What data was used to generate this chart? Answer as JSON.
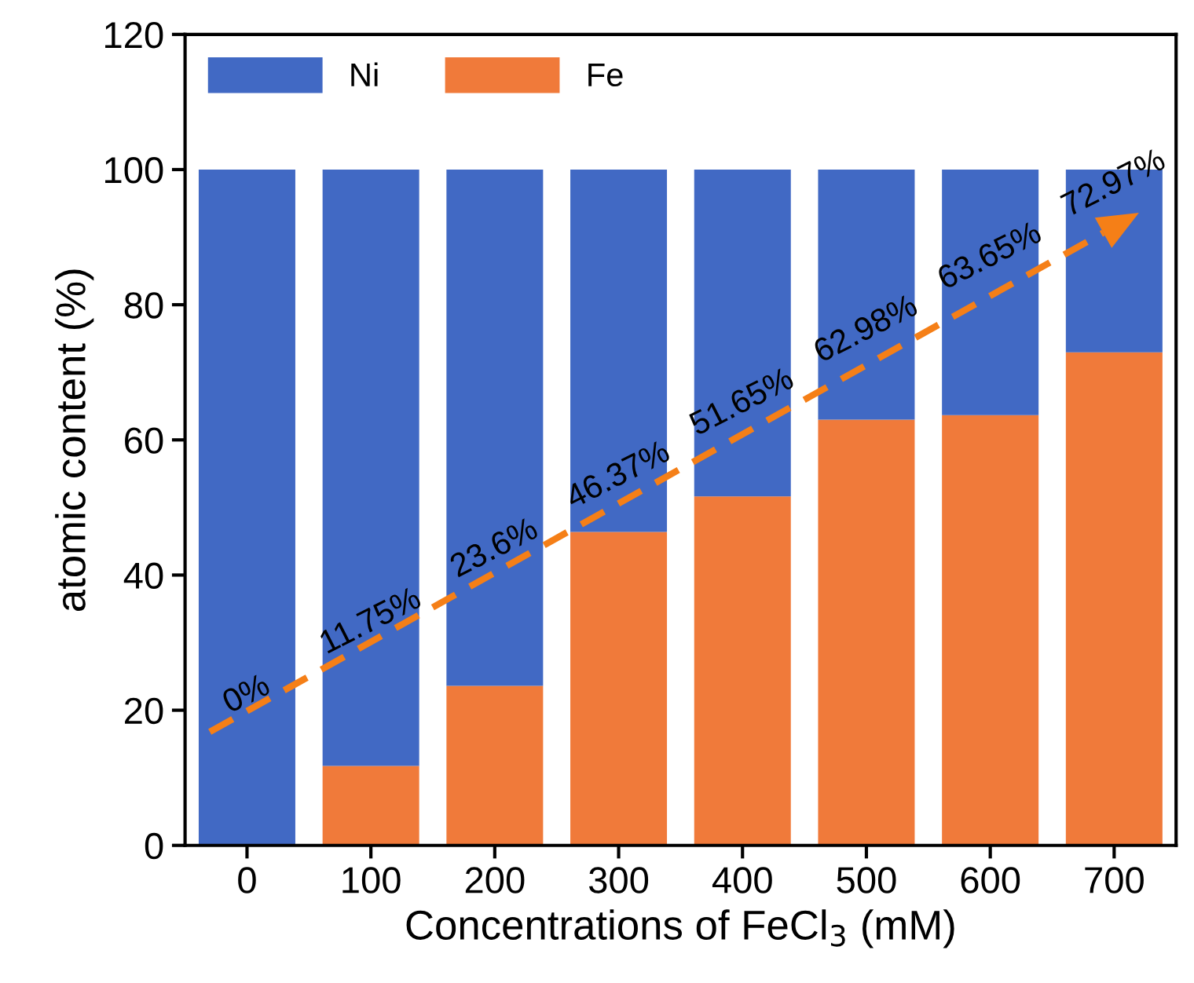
{
  "chart_data": {
    "type": "bar",
    "stacked": true,
    "xlabel": "Concentrations of FeCl$_{3}$ (mM)",
    "ylabel": "atomic content (%)",
    "categories": [
      "0",
      "100",
      "200",
      "300",
      "400",
      "500",
      "600",
      "700"
    ],
    "series": [
      {
        "name": "Fe",
        "color": "#f07a3a",
        "values": [
          0,
          11.75,
          23.6,
          46.37,
          51.65,
          62.98,
          63.65,
          72.97
        ]
      },
      {
        "name": "Ni",
        "color": "#4169c4",
        "values": [
          100,
          88.25,
          76.4,
          53.63,
          48.35,
          37.02,
          36.35,
          27.03
        ]
      }
    ],
    "ylim": [
      0,
      120
    ],
    "yticks": [
      0,
      20,
      40,
      60,
      80,
      100,
      120
    ],
    "legend": "top left",
    "grid": false,
    "annotations": [
      "0%",
      "11.75%",
      "23.6%",
      "46.37%",
      "51.65%",
      "62.98%",
      "63.65%",
      "72.97%"
    ]
  }
}
